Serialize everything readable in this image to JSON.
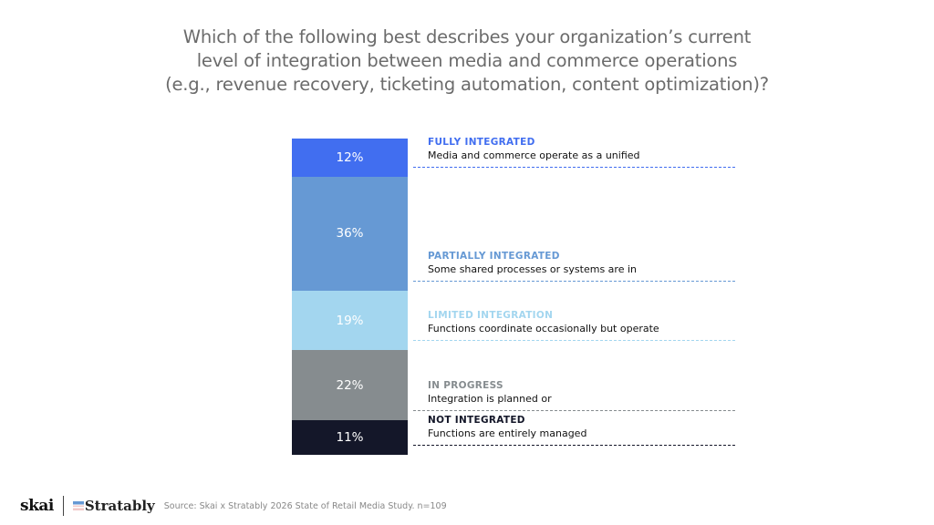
{
  "chart_data": {
    "type": "bar",
    "subtype": "stacked-100",
    "title_lines": [
      "Which of the following best describes your organization’s current",
      "level of integration between media and commerce operations",
      "(e.g., revenue recovery, ticketing automation, content optimization)?"
    ],
    "ylim": [
      0,
      100
    ],
    "segments": [
      {
        "value": 12,
        "label": "12%",
        "category": "FULLY INTEGRATED",
        "description": "Media and commerce operate as a unified",
        "color": "#416ef0",
        "label_color": "#416ef0"
      },
      {
        "value": 36,
        "label": "36%",
        "category": "PARTIALLY INTEGRATED",
        "description": "Some shared processes or systems are in",
        "color": "#6699d4",
        "label_color": "#6699d4"
      },
      {
        "value": 19,
        "label": "19%",
        "category": "LIMITED INTEGRATION",
        "description": "Functions coordinate occasionally but operate",
        "color": "#a3d6ef",
        "label_color": "#a3d6ef"
      },
      {
        "value": 22,
        "label": "22%",
        "category": "IN PROGRESS",
        "description": "Integration is planned or",
        "color": "#868c8f",
        "label_color": "#868c8f"
      },
      {
        "value": 11,
        "label": "11%",
        "category": "NOT INTEGRATED",
        "description": "Functions are entirely managed",
        "color": "#141729",
        "label_color": "#141729"
      }
    ]
  },
  "footer": {
    "logo1": "skai",
    "logo2": "Stratably",
    "source": "Source: Skai x Stratably 2026 State of Retail Media Study. n=109"
  }
}
